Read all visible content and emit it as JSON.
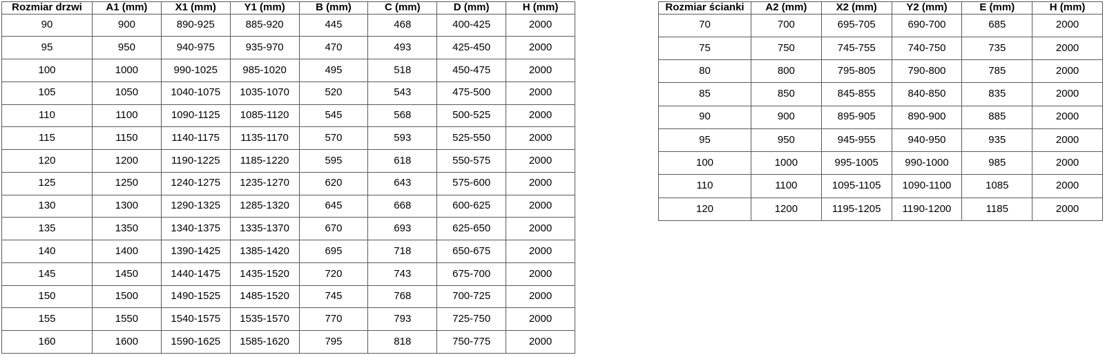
{
  "colors": {
    "background": "#ffffff",
    "table_border": "#595959",
    "text": "#000000"
  },
  "door_table": {
    "title": "door-size-table",
    "headers": [
      "Rozmiar drzwi",
      "A1 (mm)",
      "X1 (mm)",
      "Y1 (mm)",
      "B (mm)",
      "C (mm)",
      "D (mm)",
      "H (mm)"
    ],
    "rows": [
      [
        "90",
        "900",
        "890-925",
        "885-920",
        "445",
        "468",
        "400-425",
        "2000"
      ],
      [
        "95",
        "950",
        "940-975",
        "935-970",
        "470",
        "493",
        "425-450",
        "2000"
      ],
      [
        "100",
        "1000",
        "990-1025",
        "985-1020",
        "495",
        "518",
        "450-475",
        "2000"
      ],
      [
        "105",
        "1050",
        "1040-1075",
        "1035-1070",
        "520",
        "543",
        "475-500",
        "2000"
      ],
      [
        "110",
        "1100",
        "1090-1125",
        "1085-1120",
        "545",
        "568",
        "500-525",
        "2000"
      ],
      [
        "115",
        "1150",
        "1140-1175",
        "1135-1170",
        "570",
        "593",
        "525-550",
        "2000"
      ],
      [
        "120",
        "1200",
        "1190-1225",
        "1185-1220",
        "595",
        "618",
        "550-575",
        "2000"
      ],
      [
        "125",
        "1250",
        "1240-1275",
        "1235-1270",
        "620",
        "643",
        "575-600",
        "2000"
      ],
      [
        "130",
        "1300",
        "1290-1325",
        "1285-1320",
        "645",
        "668",
        "600-625",
        "2000"
      ],
      [
        "135",
        "1350",
        "1340-1375",
        "1335-1370",
        "670",
        "693",
        "625-650",
        "2000"
      ],
      [
        "140",
        "1400",
        "1390-1425",
        "1385-1420",
        "695",
        "718",
        "650-675",
        "2000"
      ],
      [
        "145",
        "1450",
        "1440-1475",
        "1435-1520",
        "720",
        "743",
        "675-700",
        "2000"
      ],
      [
        "150",
        "1500",
        "1490-1525",
        "1485-1520",
        "745",
        "768",
        "700-725",
        "2000"
      ],
      [
        "155",
        "1550",
        "1540-1575",
        "1535-1570",
        "770",
        "793",
        "725-750",
        "2000"
      ],
      [
        "160",
        "1600",
        "1590-1625",
        "1585-1620",
        "795",
        "818",
        "750-775",
        "2000"
      ]
    ]
  },
  "wall_table": {
    "title": "wall-panel-size-table",
    "headers": [
      "Rozmiar ścianki",
      "A2 (mm)",
      "X2 (mm)",
      "Y2 (mm)",
      "E (mm)",
      "H (mm)"
    ],
    "rows": [
      [
        "70",
        "700",
        "695-705",
        "690-700",
        "685",
        "2000"
      ],
      [
        "75",
        "750",
        "745-755",
        "740-750",
        "735",
        "2000"
      ],
      [
        "80",
        "800",
        "795-805",
        "790-800",
        "785",
        "2000"
      ],
      [
        "85",
        "850",
        "845-855",
        "840-850",
        "835",
        "2000"
      ],
      [
        "90",
        "900",
        "895-905",
        "890-900",
        "885",
        "2000"
      ],
      [
        "95",
        "950",
        "945-955",
        "940-950",
        "935",
        "2000"
      ],
      [
        "100",
        "1000",
        "995-1005",
        "990-1000",
        "985",
        "2000"
      ],
      [
        "110",
        "1100",
        "1095-1105",
        "1090-1100",
        "1085",
        "2000"
      ],
      [
        "120",
        "1200",
        "1195-1205",
        "1190-1200",
        "1185",
        "2000"
      ]
    ]
  }
}
